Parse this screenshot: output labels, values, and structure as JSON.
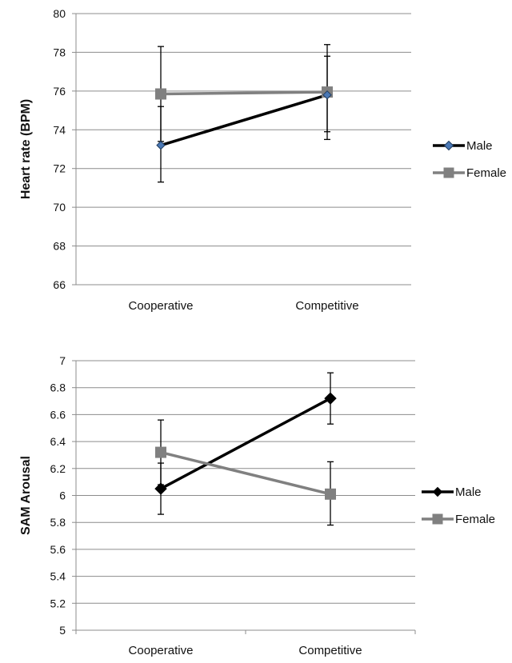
{
  "chart_data": [
    {
      "type": "line",
      "title": "",
      "xlabel": "",
      "ylabel": "Heart rate (BPM)",
      "ylim": [
        66,
        80
      ],
      "yticks": [
        66,
        68,
        70,
        72,
        74,
        76,
        78,
        80
      ],
      "categories": [
        "Cooperative",
        "Competitive"
      ],
      "grid": true,
      "legend": "right",
      "series": [
        {
          "name": "Male",
          "values": [
            73.2,
            75.8
          ],
          "error_low": [
            71.3,
            73.9
          ],
          "error_high": [
            75.2,
            77.8
          ],
          "marker": "diamond",
          "color": "#000000",
          "marker_fill": "#4a78b5",
          "marker_stroke": "#1f3c60"
        },
        {
          "name": "Female",
          "values": [
            75.85,
            75.95
          ],
          "error_low": [
            73.4,
            73.5
          ],
          "error_high": [
            78.3,
            78.4
          ],
          "marker": "square",
          "color": "#808080",
          "marker_fill": "#808080",
          "marker_stroke": "#808080"
        }
      ]
    },
    {
      "type": "line",
      "title": "",
      "xlabel": "",
      "ylabel": "SAM Arousal",
      "ylim": [
        5,
        7
      ],
      "yticks": [
        "5",
        "5.2",
        "5.4",
        "5.6",
        "5.8",
        "6",
        "6.2",
        "6.4",
        "6.6",
        "6.8",
        "7"
      ],
      "categories": [
        "Cooperative",
        "Competitive"
      ],
      "grid": true,
      "legend": "right",
      "series": [
        {
          "name": "Male",
          "values": [
            6.05,
            6.72
          ],
          "error_low": [
            5.86,
            6.53
          ],
          "error_high": [
            6.24,
            6.91
          ],
          "marker": "diamond",
          "color": "#000000",
          "marker_fill": "#000000",
          "marker_stroke": "#000000"
        },
        {
          "name": "Female",
          "values": [
            6.32,
            6.01
          ],
          "error_low": [
            6.08,
            5.78
          ],
          "error_high": [
            6.56,
            6.25
          ],
          "marker": "square",
          "color": "#808080",
          "marker_fill": "#808080",
          "marker_stroke": "#808080"
        }
      ]
    }
  ]
}
